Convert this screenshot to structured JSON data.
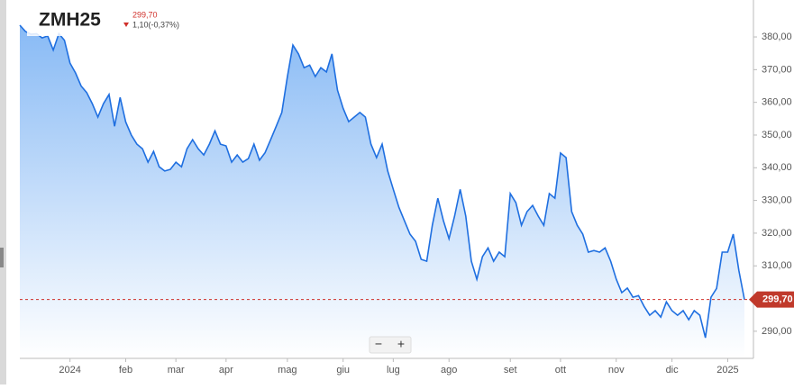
{
  "header": {
    "title": "ZMH25",
    "change": "1,10(-0,37%)"
  },
  "chart_data": {
    "type": "area",
    "color": "#1f6fe0",
    "current_price": {
      "value": 299.7,
      "label": "299,70"
    },
    "ylim": [
      281.7,
      391.3
    ],
    "yticks": [
      {
        "value": 290,
        "label": "290,00"
      },
      {
        "value": 310,
        "label": "310,00"
      },
      {
        "value": 320,
        "label": "320,00"
      },
      {
        "value": 330,
        "label": "330,00"
      },
      {
        "value": 340,
        "label": "340,00"
      },
      {
        "value": 350,
        "label": "350,00"
      },
      {
        "value": 360,
        "label": "360,00"
      },
      {
        "value": 370,
        "label": "370,00"
      },
      {
        "value": 380,
        "label": "380,00"
      }
    ],
    "grid": false,
    "categories": [
      null,
      null,
      null,
      null,
      null,
      null,
      null,
      null,
      null,
      "2024",
      null,
      null,
      null,
      null,
      null,
      null,
      null,
      null,
      null,
      "feb",
      null,
      null,
      null,
      null,
      null,
      null,
      null,
      null,
      "mar",
      null,
      null,
      null,
      null,
      null,
      null,
      null,
      null,
      "apr",
      null,
      null,
      null,
      null,
      null,
      null,
      null,
      null,
      null,
      null,
      "mag",
      null,
      null,
      null,
      null,
      null,
      null,
      null,
      null,
      null,
      "giu",
      null,
      null,
      null,
      null,
      null,
      null,
      null,
      null,
      "lug",
      null,
      null,
      null,
      null,
      null,
      null,
      null,
      null,
      null,
      "ago",
      null,
      null,
      null,
      null,
      null,
      null,
      null,
      null,
      null,
      null,
      "set",
      null,
      null,
      null,
      null,
      null,
      null,
      null,
      null,
      "ott",
      null,
      null,
      null,
      null,
      null,
      null,
      null,
      null,
      null,
      "nov",
      null,
      null,
      null,
      null,
      null,
      null,
      null,
      null,
      null,
      "dic",
      null,
      null,
      null,
      null,
      null,
      null,
      null,
      null,
      null,
      "2025",
      null,
      null,
      null
    ],
    "values": [
      383.6,
      381.7,
      380.8,
      381,
      379.7,
      380.3,
      376,
      381,
      379,
      372,
      369,
      365,
      363,
      359.6,
      355.5,
      359.6,
      362.4,
      352.7,
      361.5,
      354,
      350,
      347.2,
      345.8,
      341.7,
      345,
      340.3,
      339,
      339.5,
      341.7,
      340.3,
      345.8,
      348.6,
      345.8,
      343.9,
      347.2,
      351.3,
      347.2,
      346.7,
      341.7,
      343.9,
      341.7,
      342.8,
      347.2,
      342.3,
      344.6,
      348.6,
      352.7,
      356.9,
      367.9,
      377.5,
      374.8,
      370.6,
      371.4,
      367.9,
      370.6,
      369.3,
      374.8,
      363.7,
      358.2,
      354.1,
      355.5,
      356.9,
      355.5,
      347.2,
      343.1,
      347.2,
      339,
      333.4,
      327.9,
      323.8,
      319.7,
      317.5,
      312,
      311.4,
      322.4,
      330.7,
      323.8,
      318.3,
      325.2,
      333.4,
      325.2,
      311.4,
      305.9,
      312.8,
      315.5,
      311.4,
      314.2,
      312.8,
      332.1,
      329.3,
      322.4,
      326.6,
      328.5,
      325.2,
      322.4,
      332.1,
      330.7,
      344.5,
      343.1,
      326.6,
      322.4,
      319.7,
      314.2,
      314.7,
      314.2,
      315.5,
      311.4,
      305.9,
      301.8,
      303.2,
      300.4,
      300.9,
      297.6,
      294.9,
      296.3,
      294.3,
      299,
      296.3,
      294.9,
      296.3,
      293.5,
      296.3,
      294.9,
      288,
      300.4,
      303.1,
      314.2,
      314.2,
      319.7,
      308.6,
      299.7
    ]
  }
}
